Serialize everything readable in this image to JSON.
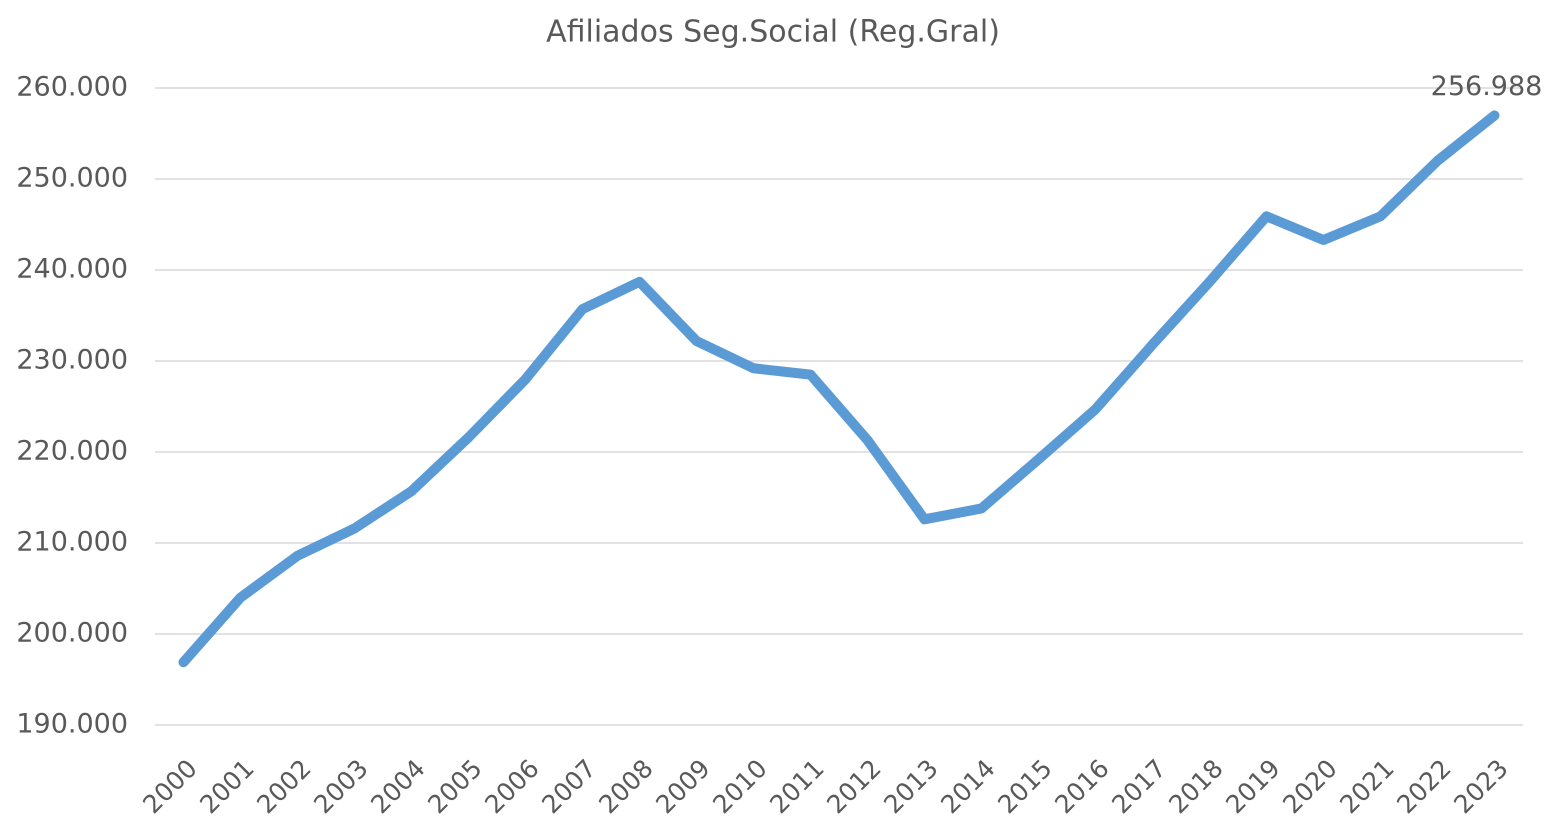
{
  "chart_data": {
    "type": "line",
    "title": "Afiliados Seg.Social (Reg.Gral)",
    "categories": [
      "2000",
      "2001",
      "2002",
      "2003",
      "2004",
      "2005",
      "2006",
      "2007",
      "2008",
      "2009",
      "2010",
      "2011",
      "2012",
      "2013",
      "2014",
      "2015",
      "2016",
      "2017",
      "2018",
      "2019",
      "2020",
      "2021",
      "2022",
      "2023"
    ],
    "values": [
      196900,
      204000,
      208600,
      211600,
      215700,
      221600,
      228000,
      235700,
      238700,
      232200,
      229200,
      228500,
      221300,
      212600,
      213800,
      219200,
      224700,
      231800,
      238700,
      245900,
      243300,
      245900,
      252000,
      256988
    ],
    "value_labels": [
      null,
      null,
      null,
      null,
      null,
      null,
      null,
      null,
      null,
      null,
      null,
      null,
      null,
      null,
      null,
      null,
      null,
      null,
      null,
      null,
      null,
      null,
      null,
      "256.988"
    ],
    "color": "#5b9bd5",
    "ylim": [
      190000,
      260000
    ],
    "yticks": [
      {
        "value": 190000,
        "label": "190.000"
      },
      {
        "value": 200000,
        "label": "200.000"
      },
      {
        "value": 210000,
        "label": "210.000"
      },
      {
        "value": 220000,
        "label": "220.000"
      },
      {
        "value": 230000,
        "label": "230.000"
      },
      {
        "value": 240000,
        "label": "240.000"
      },
      {
        "value": 250000,
        "label": "250.000"
      },
      {
        "value": 260000,
        "label": "260.000"
      }
    ],
    "grid": true
  }
}
